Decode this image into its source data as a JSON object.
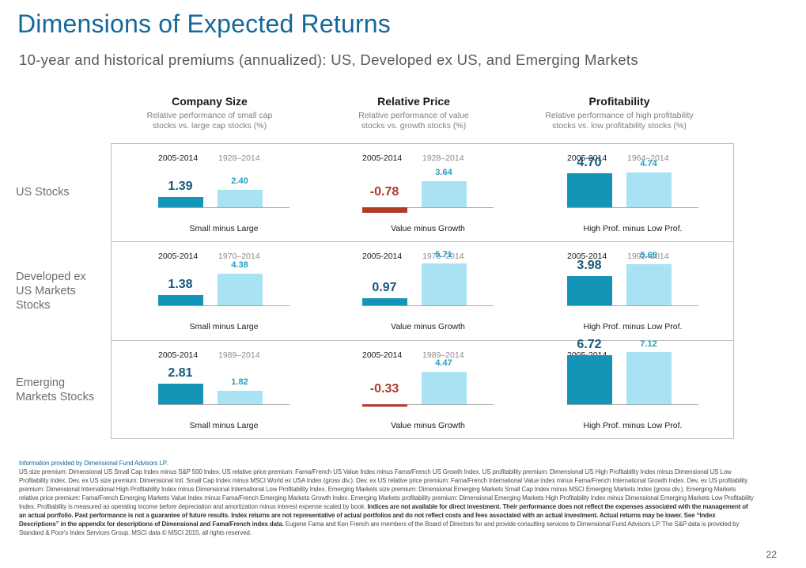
{
  "title": "Dimensions of Expected Returns",
  "subtitle": "10-year and historical premiums (annualized): US, Developed ex US, and Emerging Markets",
  "columns": [
    {
      "title": "Company Size",
      "desc_line1": "Relative performance of small cap",
      "desc_line2": "stocks vs. large cap stocks (%)",
      "caption": "Small minus Large"
    },
    {
      "title": "Relative Price",
      "desc_line1": "Relative performance of value",
      "desc_line2": "stocks vs. growth stocks (%)",
      "caption": "Value minus Growth"
    },
    {
      "title": "Profitability",
      "desc_line1": "Relative performance of high profitability",
      "desc_line2": "stocks vs. low profitability stocks (%)",
      "caption": "High Prof. minus Low Prof."
    }
  ],
  "rows": [
    {
      "label_lines": [
        "US Stocks"
      ]
    },
    {
      "label_lines": [
        "Developed ex",
        "US Markets",
        "Stocks"
      ]
    },
    {
      "label_lines": [
        "Emerging",
        "Markets Stocks"
      ]
    }
  ],
  "chart_data": {
    "type": "bar",
    "title": "Dimensions of Expected Returns",
    "series": [
      "10-year premium",
      "Historical premium"
    ],
    "ylim": [
      -1,
      8
    ],
    "cells": [
      {
        "row": "US Stocks",
        "column": "Company Size",
        "periods": [
          "2005-2014",
          "1928–2014"
        ],
        "values": [
          1.39,
          2.4
        ],
        "labels": [
          "1.39",
          "2.40"
        ]
      },
      {
        "row": "US Stocks",
        "column": "Relative Price",
        "periods": [
          "2005-2014",
          "1928–2014"
        ],
        "values": [
          -0.78,
          3.64
        ],
        "labels": [
          "-0.78",
          "3.64"
        ]
      },
      {
        "row": "US Stocks",
        "column": "Profitability",
        "periods": [
          "2005-2014",
          "1964–2014"
        ],
        "values": [
          4.7,
          4.74
        ],
        "labels": [
          "4.70",
          "4.74"
        ]
      },
      {
        "row": "Developed ex US Markets Stocks",
        "column": "Company Size",
        "periods": [
          "2005-2014",
          "1970–2014"
        ],
        "values": [
          1.38,
          4.38
        ],
        "labels": [
          "1.38",
          "4.38"
        ]
      },
      {
        "row": "Developed ex US Markets Stocks",
        "column": "Relative Price",
        "periods": [
          "2005-2014",
          "1975–2014"
        ],
        "values": [
          0.97,
          5.71
        ],
        "labels": [
          "0.97",
          "5.71"
        ]
      },
      {
        "row": "Developed ex US Markets Stocks",
        "column": "Profitability",
        "periods": [
          "2005-2014",
          "1992–2014"
        ],
        "values": [
          3.98,
          5.65
        ],
        "labels": [
          "3.98",
          "5.65"
        ]
      },
      {
        "row": "Emerging Markets Stocks",
        "column": "Company Size",
        "periods": [
          "2005-2014",
          "1989–2014"
        ],
        "values": [
          2.81,
          1.82
        ],
        "labels": [
          "2.81",
          "1.82"
        ]
      },
      {
        "row": "Emerging Markets Stocks",
        "column": "Relative Price",
        "periods": [
          "2005-2014",
          "1989–2014"
        ],
        "values": [
          -0.33,
          4.47
        ],
        "labels": [
          "-0.33",
          "4.47"
        ]
      },
      {
        "row": "Emerging Markets Stocks",
        "column": "Profitability",
        "periods": [
          "2005-2014",
          "1996–2014"
        ],
        "values": [
          6.72,
          7.12
        ],
        "labels": [
          "6.72",
          "7.12"
        ]
      }
    ]
  },
  "footnote": {
    "source": "Information provided by Dimensional Fund Advisors LP.",
    "body": "US size premium: Dimensional US Small Cap Index minus S&P 500 Index. US relative price premium: Fama/French US Value Index minus Fama/French US Growth Index. US profitability premium: Dimensional US High Profitability Index minus Dimensional US Low Profitability Index. Dev. ex US size premium: Dimensional Intl. Small Cap Index minus MSCI World ex USA Index (gross div.). Dev. ex US relative price premium: Fama/French International Value index minus Fama/French International Growth Index. Dev. ex US profitability premium: Dimensional International High Profitability Index minus Dimensional International Low Profitability Index. Emerging Markets size premium: Dimensional Emerging Markets Small Cap Index minus MSCI Emerging Markets Index (gross div.). Emerging Markets relative price premium: Fama/French Emerging Markets Value Index minus Fama/French Emerging Markets Growth Index. Emerging Markets profitability premium: Dimensional Emerging Markets High Profitability Index minus Dimensional Emerging Markets Low Profitability Index. Profitability is measured as operating income before depreciation and amortization minus interest expense scaled by book. ",
    "bold": "Indices are not available for direct investment. Their performance does not reflect the expenses associated with the management of an actual portfolio. Past performance is not a guarantee of future results. Index returns are not representative of actual portfolios and do not reflect costs and fees associated with an actual investment. Actual returns may be lower. See “Index Descriptions” in the appendix for descriptions of Dimensional and Fama/French index data.",
    "tail": " Eugene Fama and Ken French are members of the Board of Directors for and provide consulting services to Dimensional Fund Advisors LP. The S&P data is provided by Standard & Poor's Index Services Group. MSCI data © MSCI 2015, all rights reserved."
  },
  "page_number": "22"
}
